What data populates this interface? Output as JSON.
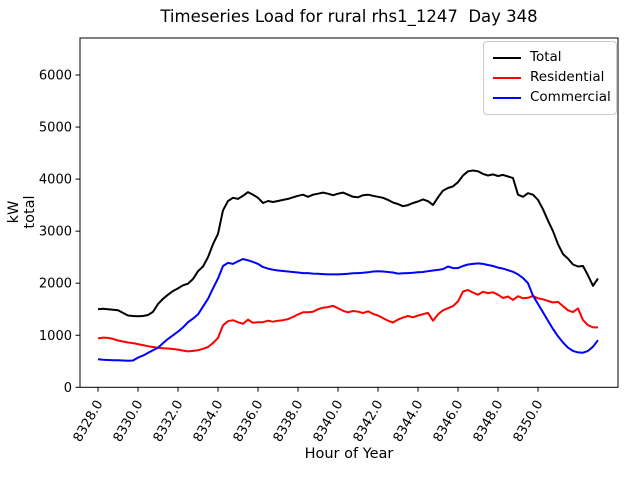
{
  "chart_data": {
    "type": "line",
    "title": "Timeseries Load for rural rhs1_1247  Day 348",
    "xlabel": "Hour of Year",
    "ylabel": "kW total",
    "grid": false,
    "legend_position": "upper right",
    "x_start": 8328.0,
    "x_step": 0.25,
    "x_end": 8353.0,
    "xlim": [
      8327.1,
      8354.0
    ],
    "ylim": [
      0,
      6711
    ],
    "xticks": {
      "values": [
        8328,
        8330,
        8332,
        8334,
        8336,
        8338,
        8340,
        8342,
        8344,
        8346,
        8348,
        8350
      ],
      "labels": [
        "8328.0",
        "8330.0",
        "8332.0",
        "8334.0",
        "8336.0",
        "8338.0",
        "8340.0",
        "8342.0",
        "8344.0",
        "8346.0",
        "8348.0",
        "8350.0"
      ]
    },
    "yticks": {
      "values": [
        0,
        1000,
        2000,
        3000,
        4000,
        5000,
        6000
      ],
      "labels": [
        "0",
        "1000",
        "2000",
        "3000",
        "4000",
        "5000",
        "6000"
      ]
    },
    "series": [
      {
        "name": "Total",
        "color": "#000000",
        "values": [
          1500,
          1510,
          1500,
          1490,
          1480,
          1430,
          1380,
          1370,
          1365,
          1370,
          1390,
          1450,
          1600,
          1700,
          1780,
          1850,
          1900,
          1960,
          1990,
          2080,
          2230,
          2320,
          2500,
          2750,
          2950,
          3400,
          3580,
          3640,
          3620,
          3680,
          3750,
          3700,
          3640,
          3540,
          3580,
          3560,
          3580,
          3600,
          3620,
          3650,
          3680,
          3700,
          3660,
          3700,
          3720,
          3740,
          3720,
          3690,
          3720,
          3740,
          3700,
          3660,
          3650,
          3690,
          3700,
          3680,
          3660,
          3640,
          3600,
          3550,
          3520,
          3480,
          3500,
          3540,
          3570,
          3610,
          3575,
          3505,
          3650,
          3780,
          3830,
          3860,
          3940,
          4070,
          4150,
          4165,
          4150,
          4100,
          4070,
          4090,
          4060,
          4080,
          4050,
          4020,
          3700,
          3660,
          3730,
          3700,
          3600,
          3420,
          3200,
          3000,
          2750,
          2560,
          2470,
          2360,
          2320,
          2330,
          2150,
          1950,
          2090
        ]
      },
      {
        "name": "Residential",
        "color": "#ff0000",
        "values": [
          940,
          955,
          950,
          930,
          900,
          880,
          860,
          850,
          830,
          810,
          790,
          775,
          760,
          750,
          745,
          735,
          725,
          705,
          690,
          700,
          710,
          740,
          775,
          850,
          950,
          1190,
          1270,
          1290,
          1250,
          1220,
          1300,
          1240,
          1250,
          1250,
          1280,
          1260,
          1280,
          1290,
          1310,
          1350,
          1400,
          1440,
          1440,
          1450,
          1500,
          1530,
          1540,
          1565,
          1520,
          1470,
          1440,
          1465,
          1455,
          1425,
          1460,
          1410,
          1380,
          1330,
          1280,
          1245,
          1300,
          1340,
          1370,
          1345,
          1380,
          1405,
          1430,
          1280,
          1400,
          1480,
          1520,
          1560,
          1650,
          1840,
          1870,
          1820,
          1780,
          1835,
          1810,
          1825,
          1780,
          1715,
          1745,
          1680,
          1750,
          1710,
          1720,
          1755,
          1710,
          1690,
          1660,
          1630,
          1640,
          1560,
          1480,
          1445,
          1515,
          1290,
          1195,
          1150,
          1150
        ]
      },
      {
        "name": "Commercial",
        "color": "#0000ff",
        "values": [
          540,
          530,
          525,
          520,
          520,
          515,
          510,
          515,
          570,
          610,
          660,
          710,
          760,
          850,
          930,
          1000,
          1070,
          1150,
          1250,
          1320,
          1400,
          1550,
          1700,
          1900,
          2090,
          2330,
          2390,
          2370,
          2420,
          2465,
          2440,
          2410,
          2370,
          2310,
          2280,
          2260,
          2245,
          2235,
          2225,
          2215,
          2205,
          2195,
          2195,
          2185,
          2180,
          2175,
          2170,
          2170,
          2170,
          2175,
          2180,
          2190,
          2195,
          2200,
          2210,
          2225,
          2230,
          2225,
          2215,
          2205,
          2185,
          2190,
          2195,
          2200,
          2210,
          2215,
          2230,
          2245,
          2255,
          2270,
          2320,
          2290,
          2290,
          2330,
          2360,
          2370,
          2380,
          2370,
          2350,
          2330,
          2300,
          2280,
          2250,
          2220,
          2170,
          2100,
          2000,
          1760,
          1600,
          1440,
          1280,
          1120,
          980,
          860,
          760,
          700,
          670,
          665,
          700,
          780,
          905
        ]
      }
    ]
  }
}
